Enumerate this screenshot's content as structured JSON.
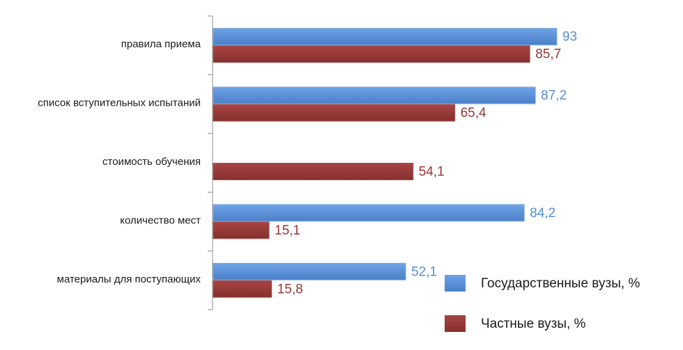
{
  "chart_data": {
    "type": "bar",
    "orientation": "horizontal",
    "categories": [
      "правила приема",
      "список вступительных испытаний",
      "стоимость обучения",
      "количество мест",
      "материалы для поступающих"
    ],
    "series": [
      {
        "name": "Государственные вузы, %",
        "color": "#558ED5",
        "values": [
          93,
          87.2,
          null,
          84.2,
          52.1
        ],
        "labels": [
          "93",
          "87,2",
          "",
          "84,2",
          "52,1"
        ]
      },
      {
        "name": "Частные вузы, %",
        "color": "#953735",
        "values": [
          85.7,
          65.4,
          54.1,
          15.1,
          15.8
        ],
        "labels": [
          "85,7",
          "65,4",
          "54,1",
          "15,1",
          "15,8"
        ]
      }
    ],
    "xlim": [
      0,
      100
    ],
    "grid": false,
    "legend_position": "bottom-right"
  }
}
